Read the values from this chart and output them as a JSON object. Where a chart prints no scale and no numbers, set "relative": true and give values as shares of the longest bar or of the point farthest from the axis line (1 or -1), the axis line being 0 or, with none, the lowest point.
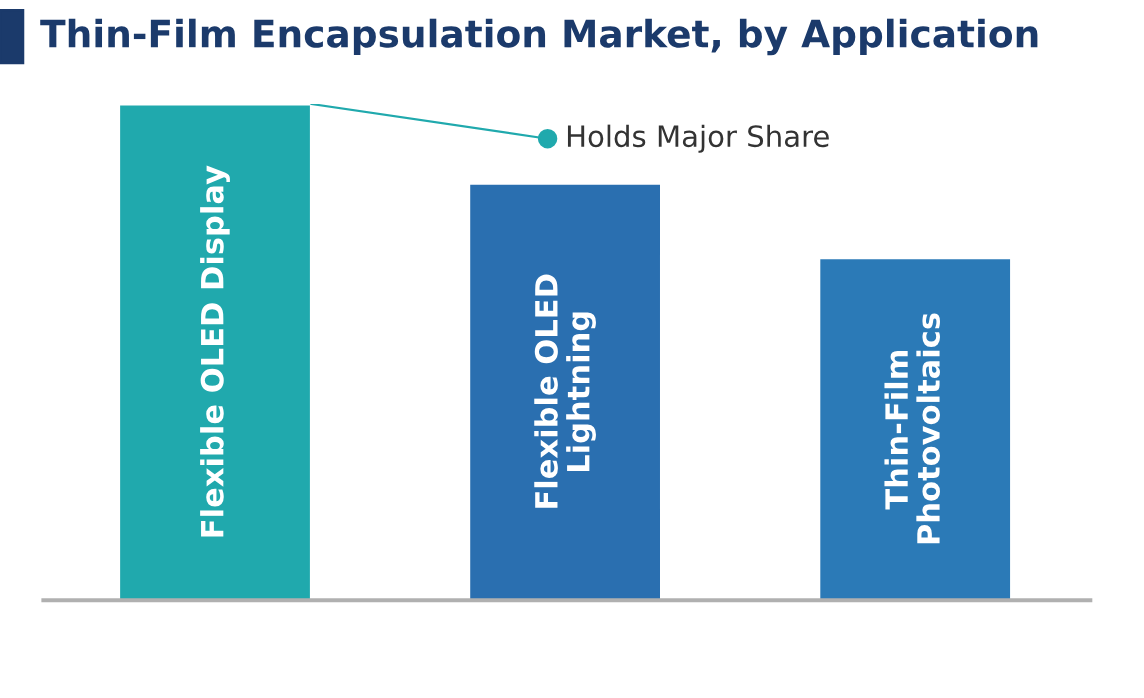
{
  "chart_data": {
    "type": "bar",
    "title": "Thin-Film Encapsulation Market, by Application",
    "categories": [
      "Flexible OLED Display",
      "Flexible OLED\nLightning",
      "Thin-Film\nPhotovoltaics"
    ],
    "values": [
      1,
      0.84,
      0.69
    ],
    "colors": [
      "#20a9ad",
      "#2a6fb0",
      "#2b7ab7"
    ],
    "relative": true,
    "annotations": [
      "Holds Major Share"
    ]
  }
}
